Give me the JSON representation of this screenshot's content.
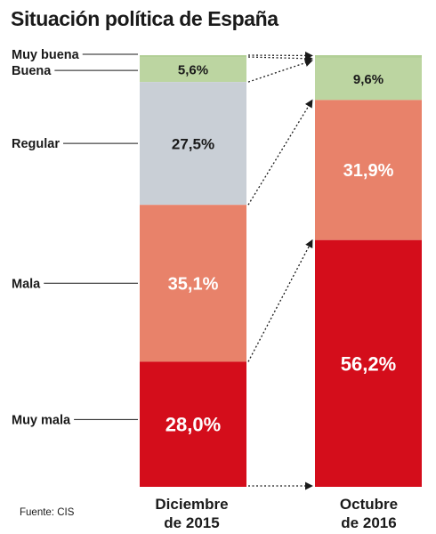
{
  "title": "Situación política de España",
  "source": "Fuente: CIS",
  "chart_data": {
    "type": "bar",
    "stacked": true,
    "normalized": true,
    "title": "Situación política de España",
    "categories": [
      "Muy buena",
      "Buena",
      "Regular",
      "Mala",
      "Muy mala"
    ],
    "columns": [
      {
        "label_lines": [
          "Diciembre",
          "de 2015"
        ],
        "values": [
          0.4,
          5.6,
          27.5,
          35.1,
          28.0
        ],
        "labels": [
          "",
          "5,6%",
          "27,5%",
          "35,1%",
          "28,0%"
        ]
      },
      {
        "label_lines": [
          "Octubre",
          "de 2016"
        ],
        "values": [
          0.6,
          9.6,
          0,
          31.9,
          56.2
        ],
        "labels": [
          "",
          "9,6%",
          "",
          "31,9%",
          "56,2%"
        ]
      }
    ],
    "colors": {
      "Muy buena": "#b2cf96",
      "Buena": "#bcd5a1",
      "Regular": "#c9cfd6",
      "Mala": "#e8826a",
      "Muy mala": "#d40d1b"
    }
  }
}
